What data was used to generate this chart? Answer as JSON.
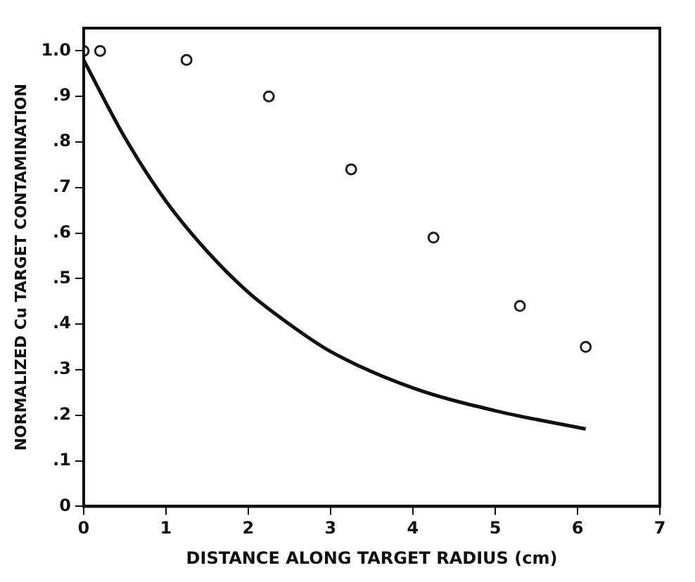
{
  "chart_data": {
    "type": "scatter",
    "xlabel": "DISTANCE ALONG TARGET RADIUS (cm)",
    "ylabel": "NORMALIZED Cu TARGET CONTAMINATION",
    "xlim": [
      0,
      7
    ],
    "xticks": [
      0,
      1,
      2,
      3,
      4,
      5,
      6,
      7
    ],
    "ylim": [
      0,
      1.05
    ],
    "yticks": [
      0,
      {
        "value": 0.1,
        "label": ".1"
      },
      {
        "value": 0.2,
        "label": ".2"
      },
      {
        "value": 0.3,
        "label": ".3"
      },
      {
        "value": 0.4,
        "label": ".4"
      },
      {
        "value": 0.5,
        "label": ".5"
      },
      {
        "value": 0.6,
        "label": ".6"
      },
      {
        "value": 0.7,
        "label": ".7"
      },
      {
        "value": 0.8,
        "label": ".8"
      },
      {
        "value": 0.9,
        "label": ".9"
      },
      {
        "value": 1.0,
        "label": "1.0"
      }
    ],
    "grid": false,
    "legend": false,
    "series": [
      {
        "type": "scatter",
        "marker": "circle",
        "color": "#222222",
        "x": [
          0,
          0.2,
          1.25,
          2.25,
          3.25,
          4.25,
          5.3,
          6.1
        ],
        "values": [
          1.0,
          1.0,
          0.98,
          0.9,
          0.74,
          0.59,
          0.44,
          0.35
        ]
      },
      {
        "type": "line",
        "marker": "none",
        "line_style": "solid",
        "color": "#111111",
        "x": [
          0,
          0.5,
          1,
          1.5,
          2,
          2.5,
          3,
          4,
          5,
          6.1
        ],
        "values": [
          0.98,
          0.81,
          0.67,
          0.56,
          0.47,
          0.4,
          0.34,
          0.26,
          0.21,
          0.17
        ]
      }
    ]
  }
}
